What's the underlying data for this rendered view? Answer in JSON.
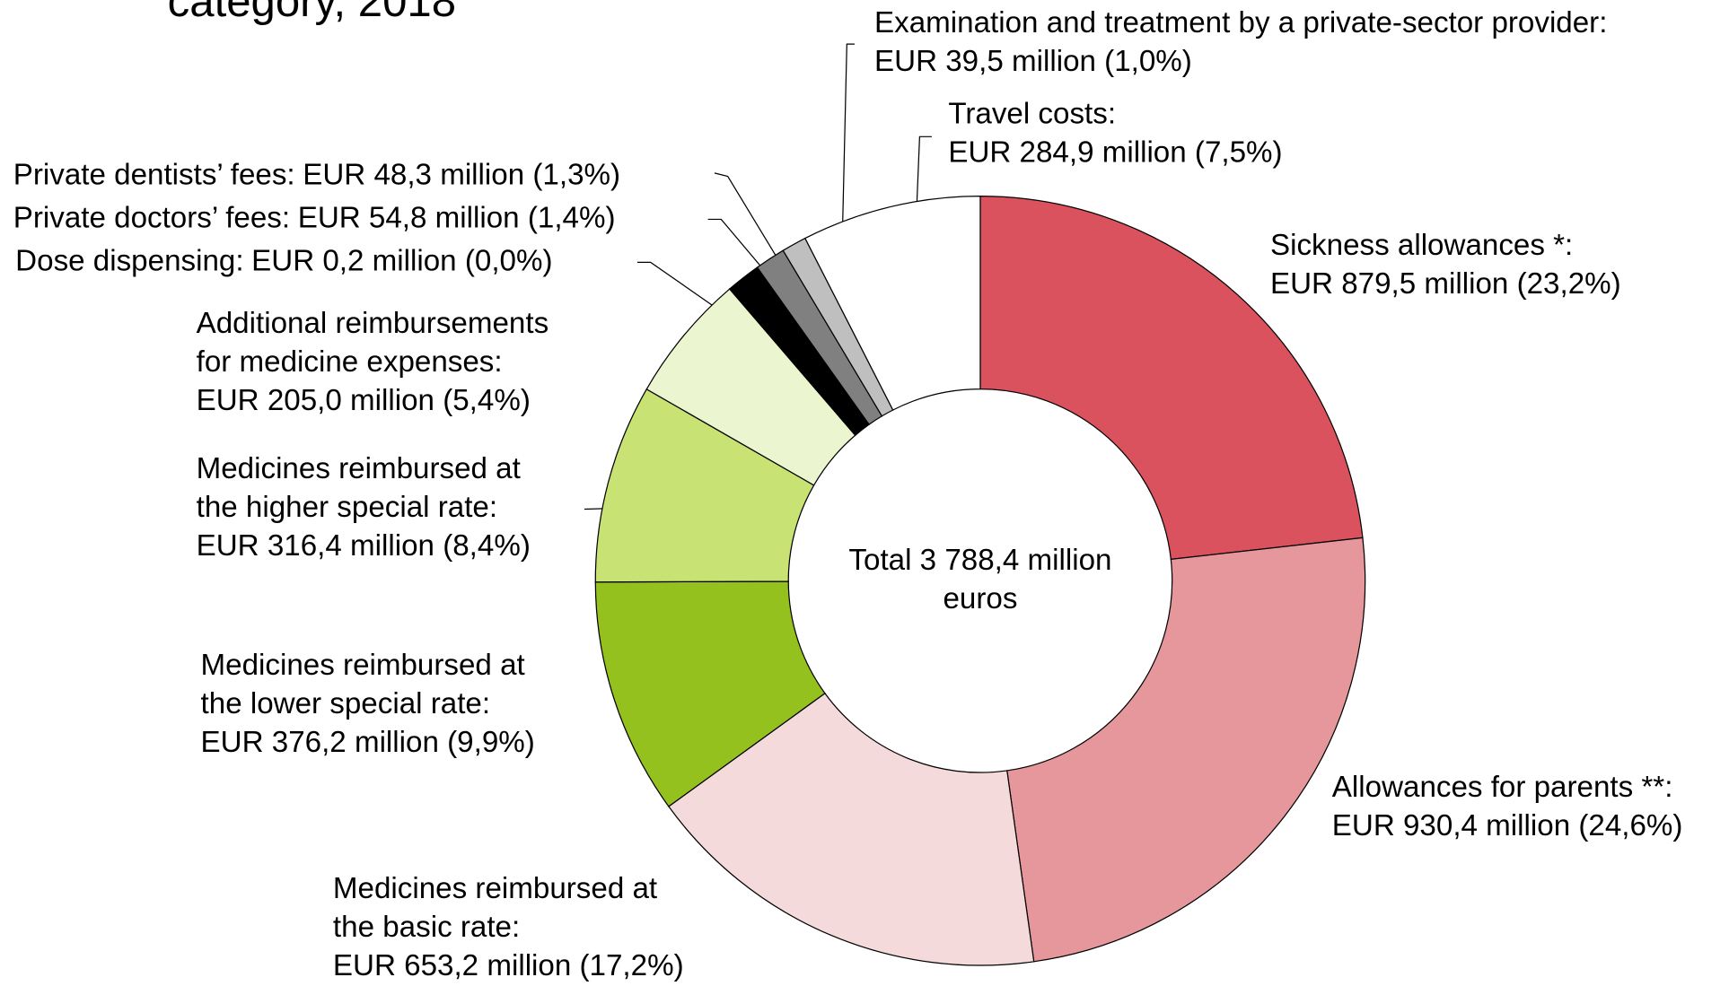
{
  "chart_data": {
    "type": "donut",
    "title": "category, 2018",
    "center_label": [
      "Total 3 788,4 million",
      "euros"
    ],
    "categories": [
      [
        "Sickness allowances *:"
      ],
      [
        "Allowances for parents **:"
      ],
      [
        "Medicines reimbursed at",
        "the basic rate:"
      ],
      [
        "Medicines reimbursed at",
        "the lower special rate:"
      ],
      [
        "Medicines reimbursed at",
        "the higher special rate:"
      ],
      [
        "Additional reimbursements",
        "for medicine expenses:"
      ],
      [
        "Dose dispensing:"
      ],
      [
        "Private doctors’ fees:"
      ],
      [
        "Private dentists’ fees:"
      ],
      [
        "Examination and treatment by a private-sector provider:"
      ],
      [
        "Travel costs:"
      ]
    ],
    "values": [
      879.5,
      930.4,
      653.2,
      376.2,
      316.4,
      205.0,
      0.2,
      54.8,
      48.3,
      39.5,
      284.9
    ],
    "value_labels": [
      "EUR 879,5 million (23,2%)",
      "EUR 930,4 million (24,6%)",
      "EUR 653,2 million (17,2%)",
      "EUR 376,2 million (9,9%)",
      "EUR 316,4 million (8,4%)",
      "EUR 205,0 million (5,4%)",
      "EUR 0,2 million (0,0%)",
      "EUR 54,8 million (1,4%)",
      "EUR 48,3 million (1,3%)",
      "EUR 39,5 million (1,0%)",
      "EUR 284,9 million (7,5%)"
    ],
    "colors": [
      "#d9525e",
      "#e6979c",
      "#f5dadb",
      "#95c11f",
      "#c8e373",
      "#ebf5cf",
      "#000000",
      "#000000",
      "#808080",
      "#bfbfbf",
      "#ffffff"
    ]
  }
}
